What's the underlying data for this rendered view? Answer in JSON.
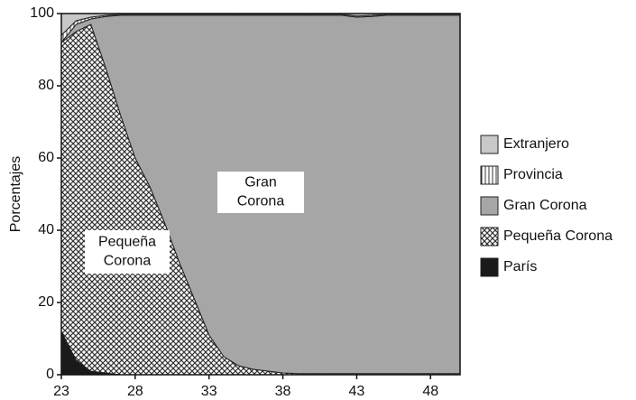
{
  "chart_data": {
    "type": "stacked_area",
    "y_label": "Porcentajes",
    "x": [
      23,
      24,
      25,
      26,
      27,
      28,
      29,
      30,
      31,
      32,
      33,
      34,
      35,
      36,
      37,
      38,
      39,
      40,
      41,
      42,
      43,
      44,
      45,
      46,
      47,
      48,
      49,
      50
    ],
    "xlim": [
      23,
      50
    ],
    "xticks": [
      23,
      28,
      33,
      38,
      43,
      48
    ],
    "ylim": [
      0,
      100
    ],
    "yticks": [
      0,
      20,
      40,
      60,
      80,
      100
    ],
    "series": [
      {
        "name": "París",
        "color": "#1a1a1a",
        "pattern": "solid",
        "values": [
          12,
          4,
          1,
          0.5,
          0,
          0,
          0,
          0,
          0,
          0,
          0,
          0,
          0,
          0,
          0,
          0,
          0,
          0,
          0,
          0,
          0,
          0,
          0,
          0,
          0,
          0,
          0,
          0
        ]
      },
      {
        "name": "Pequeña Corona",
        "color": "#333333",
        "pattern": "crosshatch",
        "values": [
          80,
          91,
          96,
          84.5,
          72,
          60,
          52,
          42,
          31,
          21,
          11,
          5,
          2.5,
          1.5,
          1,
          0.5,
          0.3,
          0.3,
          0.3,
          0.3,
          0.3,
          0.3,
          0.3,
          0.3,
          0.3,
          0.3,
          0.3,
          0.3
        ]
      },
      {
        "name": "Gran Corona",
        "color": "#a6a6a6",
        "pattern": "solid",
        "values": [
          0,
          2,
          1.5,
          14.2,
          27.5,
          39.5,
          47.5,
          57.5,
          68.5,
          78.5,
          88.5,
          94.5,
          97,
          98,
          98.5,
          99,
          99.2,
          99.2,
          99.2,
          99.2,
          98.7,
          98.9,
          99.2,
          99.2,
          99.2,
          99.2,
          99.2,
          99.2
        ]
      },
      {
        "name": "Provincia",
        "color": "#333333",
        "pattern": "vertical",
        "values": [
          2,
          1,
          0.5,
          0.3,
          0.3,
          0.3,
          0.3,
          0.3,
          0.3,
          0.3,
          0.3,
          0.3,
          0.3,
          0.3,
          0.3,
          0.3,
          0.3,
          0.3,
          0.3,
          0.3,
          0.3,
          0.3,
          0.3,
          0.3,
          0.3,
          0.3,
          0.3,
          0.3
        ]
      },
      {
        "name": "Extranjero",
        "color": "#c8c8c8",
        "pattern": "solid",
        "values": [
          6,
          2,
          1,
          0.5,
          0.2,
          0.2,
          0.2,
          0.2,
          0.2,
          0.2,
          0.2,
          0.2,
          0.2,
          0.2,
          0.2,
          0.2,
          0.2,
          0.2,
          0.2,
          0.2,
          0.7,
          0.5,
          0.2,
          0.2,
          0.2,
          0.2,
          0.2,
          0.2
        ]
      }
    ],
    "annotations": [
      {
        "lines": [
          "Gran",
          "Corona"
        ]
      },
      {
        "lines": [
          "Pequeña",
          "Corona"
        ]
      }
    ]
  }
}
